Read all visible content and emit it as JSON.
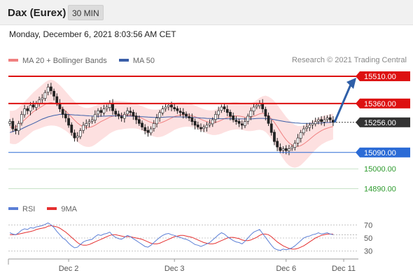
{
  "header": {
    "instrument": "Dax (Eurex)",
    "timeframe": "30 MIN"
  },
  "timestamp": "Monday, December 6, 2021 8:03:56 AM CET",
  "copyright": "Research © 2021 Trading Central",
  "colors": {
    "resistance": "#dd1111",
    "support": "#2b6bd6",
    "target": "#2e9b2e",
    "current": "#333333",
    "arrow": "#2f5fa8",
    "ma20": "#f08080",
    "bollinger_fill": "#fde0e0",
    "ma50": "#3a5ea8",
    "candle_up": "#ffffff",
    "candle_down": "#222222",
    "rsi": "#5b7fd6",
    "rsi_ma": "#e53030"
  },
  "chart_data": [
    {
      "type": "candlestick",
      "legend": [
        {
          "name": "MA 20 + Bollinger Bands",
          "color": "#f08080"
        },
        {
          "name": "MA 50",
          "color": "#3a5ea8"
        }
      ],
      "ylim": [
        14850,
        15560
      ],
      "levels": [
        {
          "value": 15510.0,
          "label": "15510.00",
          "kind": "resistance"
        },
        {
          "value": 15360.0,
          "label": "15360.00",
          "kind": "resistance"
        },
        {
          "value": 15256.0,
          "label": "15256.00",
          "kind": "current"
        },
        {
          "value": 15090.0,
          "label": "15090.00",
          "kind": "support"
        },
        {
          "value": 15000.0,
          "label": "15000.00",
          "kind": "target"
        },
        {
          "value": 14890.0,
          "label": "14890.00",
          "kind": "target"
        }
      ],
      "x_ticks": [
        "Dec 2",
        "Dec 3",
        "Dec 6",
        "Dec 11"
      ],
      "closes": [
        15260,
        15220,
        15210,
        15250,
        15300,
        15330,
        15320,
        15350,
        15340,
        15360,
        15380,
        15390,
        15420,
        15450,
        15430,
        15400,
        15360,
        15330,
        15300,
        15280,
        15240,
        15200,
        15170,
        15180,
        15210,
        15240,
        15250,
        15260,
        15270,
        15300,
        15320,
        15310,
        15330,
        15340,
        15360,
        15320,
        15300,
        15290,
        15280,
        15300,
        15320,
        15310,
        15290,
        15270,
        15250,
        15230,
        15210,
        15200,
        15220,
        15250,
        15280,
        15310,
        15330,
        15340,
        15350,
        15340,
        15330,
        15320,
        15310,
        15300,
        15290,
        15280,
        15260,
        15240,
        15230,
        15220,
        15230,
        15240,
        15250,
        15270,
        15300,
        15320,
        15340,
        15330,
        15310,
        15290,
        15270,
        15260,
        15250,
        15240,
        15260,
        15290,
        15320,
        15340,
        15350,
        15360,
        15330,
        15290,
        15250,
        15200,
        15150,
        15120,
        15100,
        15110,
        15100,
        15110,
        15120,
        15140,
        15170,
        15200,
        15220,
        15230,
        15240,
        15250,
        15260,
        15270,
        15260,
        15270,
        15280,
        15270,
        15256
      ],
      "ma50": [
        15200,
        15205,
        15210,
        15215,
        15220,
        15228,
        15236,
        15243,
        15250,
        15258,
        15266,
        15274,
        15280,
        15286,
        15290,
        15294,
        15297,
        15300,
        15300,
        15300,
        15299,
        15298,
        15297,
        15296,
        15295,
        15294,
        15293,
        15292,
        15291,
        15290,
        15290,
        15290,
        15290,
        15291,
        15292,
        15292,
        15292,
        15292,
        15292,
        15291,
        15291,
        15290,
        15290,
        15289,
        15288,
        15287,
        15286,
        15285,
        15284,
        15283,
        15283,
        15283,
        15284,
        15285,
        15286,
        15286,
        15286,
        15286,
        15286,
        15285,
        15285,
        15284,
        15283,
        15282,
        15281,
        15280,
        15279,
        15278,
        15277,
        15276,
        15276,
        15276,
        15276,
        15276,
        15276,
        15276,
        15276,
        15275,
        15275,
        15275,
        15275,
        15275,
        15275,
        15276,
        15277,
        15278,
        15278,
        15277,
        15276,
        15274,
        15271,
        15268,
        15265,
        15262,
        15259,
        15257,
        15255,
        15253,
        15252,
        15251,
        15250,
        15250,
        15250,
        15250,
        15251,
        15252,
        15253,
        15254,
        15255,
        15256,
        15257
      ],
      "ma20": [
        15230,
        15228,
        15230,
        15240,
        15255,
        15270,
        15285,
        15300,
        15315,
        15325,
        15335,
        15345,
        15355,
        15362,
        15365,
        15362,
        15355,
        15345,
        15332,
        15318,
        15302,
        15285,
        15268,
        15252,
        15240,
        15232,
        15228,
        15228,
        15232,
        15240,
        15250,
        15260,
        15268,
        15276,
        15285,
        15290,
        15293,
        15295,
        15295,
        15296,
        15296,
        15295,
        15293,
        15290,
        15285,
        15278,
        15270,
        15262,
        15256,
        15252,
        15250,
        15252,
        15257,
        15264,
        15272,
        15280,
        15288,
        15293,
        15296,
        15298,
        15298,
        15296,
        15292,
        15287,
        15280,
        15273,
        15266,
        15260,
        15256,
        15254,
        15256,
        15261,
        15268,
        15276,
        15283,
        15288,
        15291,
        15292,
        15291,
        15288,
        15284,
        15282,
        15284,
        15289,
        15296,
        15303,
        15306,
        15303,
        15292,
        15276,
        15256,
        15232,
        15206,
        15182,
        15160,
        15143,
        15131,
        15124,
        15123,
        15128,
        15137,
        15149,
        15162,
        15176,
        15189,
        15200,
        15210,
        15218,
        15224,
        15229,
        15233
      ],
      "bb_width": [
        90,
        92,
        94,
        96,
        98,
        100,
        102,
        104,
        106,
        110,
        114,
        118,
        122,
        125,
        126,
        124,
        120,
        116,
        112,
        108,
        105,
        104,
        104,
        104,
        105,
        106,
        107,
        108,
        108,
        107,
        105,
        102,
        98,
        94,
        90,
        86,
        82,
        80,
        78,
        76,
        74,
        72,
        70,
        68,
        67,
        67,
        68,
        70,
        72,
        74,
        76,
        77,
        78,
        78,
        77,
        76,
        74,
        72,
        70,
        68,
        66,
        64,
        63,
        62,
        62,
        62,
        63,
        64,
        66,
        68,
        70,
        72,
        74,
        75,
        76,
        76,
        76,
        75,
        74,
        73,
        73,
        74,
        76,
        79,
        83,
        88,
        94,
        100,
        106,
        112,
        117,
        121,
        124,
        126,
        126,
        125,
        122,
        118,
        113,
        108,
        102,
        97,
        92,
        88,
        84,
        80,
        77,
        75,
        73,
        72,
        71
      ],
      "opens": [
        15250,
        15262,
        15220,
        15210,
        15252,
        15298,
        15332,
        15318,
        15352,
        15338,
        15362,
        15382,
        15388,
        15422,
        15452,
        15428,
        15398,
        15362,
        15328,
        15302,
        15278,
        15242,
        15198,
        15172,
        15178,
        15212,
        15238,
        15252,
        15262,
        15268,
        15302,
        15322,
        15308,
        15332,
        15338,
        15362,
        15318,
        15302,
        15288,
        15278,
        15302,
        15318,
        15312,
        15292,
        15272,
        15252,
        15228,
        15212,
        15198,
        15222,
        15248,
        15282,
        15308,
        15332,
        15342,
        15352,
        15338,
        15332,
        15318,
        15312,
        15302,
        15288,
        15282,
        15262,
        15242,
        15228,
        15222,
        15228,
        15242,
        15248,
        15272,
        15298,
        15322,
        15342,
        15328,
        15312,
        15292,
        15268,
        15262,
        15248,
        15238,
        15262,
        15288,
        15318,
        15342,
        15348,
        15362,
        15328,
        15292,
        15248,
        15202,
        15152,
        15118,
        15102,
        15112,
        15098,
        15112,
        15118,
        15142,
        15168,
        15198,
        15222,
        15228,
        15242,
        15248,
        15262,
        15272,
        15258,
        15272,
        15282,
        15268
      ]
    },
    {
      "type": "line",
      "legend": [
        {
          "name": "RSI",
          "color": "#5b7fd6"
        },
        {
          "name": "9MA",
          "color": "#e53030"
        }
      ],
      "ylim": [
        20,
        80
      ],
      "y_ticks": [
        70,
        50,
        30
      ],
      "rsi": [
        58,
        56,
        55,
        58,
        62,
        64,
        63,
        66,
        65,
        67,
        68,
        69,
        71,
        73,
        70,
        66,
        60,
        55,
        50,
        47,
        42,
        38,
        35,
        36,
        40,
        44,
        46,
        47,
        48,
        52,
        55,
        54,
        56,
        57,
        59,
        54,
        51,
        49,
        48,
        51,
        54,
        52,
        49,
        46,
        43,
        40,
        37,
        36,
        39,
        43,
        47,
        51,
        54,
        56,
        57,
        55,
        54,
        52,
        51,
        49,
        48,
        46,
        43,
        40,
        39,
        37,
        39,
        41,
        43,
        47,
        51,
        55,
        58,
        56,
        52,
        49,
        46,
        44,
        43,
        41,
        45,
        50,
        55,
        59,
        61,
        63,
        57,
        51,
        45,
        39,
        34,
        32,
        31,
        33,
        32,
        33,
        35,
        38,
        42,
        46,
        50,
        52,
        53,
        55,
        56,
        58,
        56,
        57,
        58,
        56,
        55
      ],
      "rsi_ma": [
        55,
        55,
        55,
        56,
        57,
        58,
        59,
        60,
        61,
        63,
        64,
        65,
        66,
        68,
        69,
        68,
        67,
        65,
        62,
        59,
        55,
        51,
        47,
        43,
        40,
        39,
        39,
        40,
        42,
        44,
        46,
        48,
        50,
        52,
        54,
        55,
        55,
        54,
        53,
        52,
        52,
        52,
        51,
        50,
        49,
        48,
        46,
        44,
        42,
        41,
        41,
        42,
        44,
        46,
        48,
        50,
        52,
        53,
        54,
        54,
        53,
        52,
        51,
        49,
        47,
        45,
        43,
        42,
        41,
        41,
        42,
        44,
        46,
        48,
        50,
        51,
        51,
        50,
        49,
        47,
        46,
        46,
        47,
        49,
        51,
        54,
        56,
        56,
        55,
        52,
        48,
        44,
        41,
        38,
        36,
        34,
        33,
        33,
        34,
        36,
        38,
        41,
        44,
        47,
        50,
        52,
        54,
        55,
        56,
        56,
        56
      ]
    }
  ]
}
